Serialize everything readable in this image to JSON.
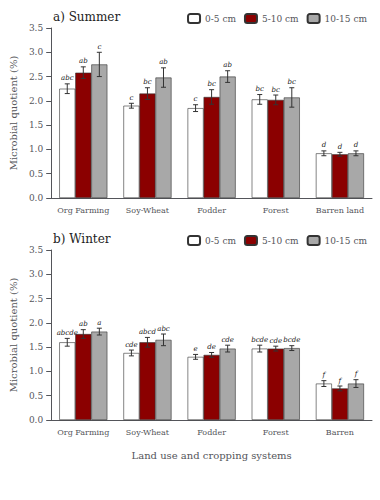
{
  "chart_data": [
    {
      "type": "bar",
      "title": "a) Summer",
      "categories": [
        "Org Farming",
        "Soy-Wheat",
        "Fodder",
        "Forest",
        "Barren land"
      ],
      "series": [
        {
          "name": "0-5 cm",
          "color": "#ffffff",
          "values": [
            2.25,
            1.9,
            1.85,
            2.03,
            0.92
          ],
          "errors": [
            0.1,
            0.05,
            0.07,
            0.1,
            0.05
          ],
          "letters": [
            "abc",
            "c",
            "c",
            "bc",
            "d"
          ]
        },
        {
          "name": "5-10 cm",
          "color": "#8b0000",
          "values": [
            2.58,
            2.15,
            2.08,
            2.02,
            0.9
          ],
          "errors": [
            0.12,
            0.12,
            0.15,
            0.1,
            0.04
          ],
          "letters": [
            "ab",
            "bc",
            "bc",
            "bc",
            "d"
          ]
        },
        {
          "name": "10-15 cm",
          "color": "#a8a8a8",
          "values": [
            2.75,
            2.48,
            2.5,
            2.07,
            0.92
          ],
          "errors": [
            0.25,
            0.2,
            0.12,
            0.2,
            0.05
          ],
          "letters": [
            "c",
            "ab",
            "ab",
            "bc",
            "d"
          ]
        }
      ],
      "ylabel": "Microbial quotient (%)",
      "ylim": [
        0,
        3.5
      ],
      "yticks": [
        {
          "value": 0.0,
          "label": "0.0"
        },
        0.5,
        {
          "value": 1.0,
          "label": "1.0"
        },
        1.5,
        {
          "value": 2.0,
          "label": "2.0"
        },
        2.5,
        {
          "value": 3.0,
          "label": "3.0"
        },
        3.5
      ],
      "grid": false,
      "legend": "upper right"
    },
    {
      "type": "bar",
      "title": "b) Winter",
      "categories": [
        "Org Farming",
        "Soy-Wheat",
        "Fodder",
        "Forest",
        "Barren"
      ],
      "series": [
        {
          "name": "0-5 cm",
          "color": "#ffffff",
          "values": [
            1.6,
            1.38,
            1.3,
            1.47,
            0.75
          ],
          "errors": [
            0.08,
            0.06,
            0.05,
            0.07,
            0.06
          ],
          "letters": [
            "abcde",
            "cde",
            "e",
            "bcde",
            "f"
          ]
        },
        {
          "name": "5-10 cm",
          "color": "#8b0000",
          "values": [
            1.77,
            1.6,
            1.34,
            1.47,
            0.65
          ],
          "errors": [
            0.09,
            0.1,
            0.05,
            0.05,
            0.05
          ],
          "letters": [
            "ab",
            "abcd",
            "de",
            "cde",
            "f"
          ]
        },
        {
          "name": "10-15 cm",
          "color": "#a8a8a8",
          "values": [
            1.82,
            1.65,
            1.47,
            1.48,
            0.75
          ],
          "errors": [
            0.07,
            0.12,
            0.07,
            0.05,
            0.08
          ],
          "letters": [
            "a",
            "abc",
            "cde",
            "bcde",
            "f"
          ]
        }
      ],
      "ylabel": "Microbial quotient (%)",
      "xlabel": "Land use and cropping systems",
      "ylim": [
        0,
        3.5
      ],
      "yticks": [
        {
          "value": 0.0,
          "label": "0.0"
        },
        0.5,
        {
          "value": 1.0,
          "label": "1.0"
        },
        1.5,
        {
          "value": 2.0,
          "label": "2.0"
        },
        2.5,
        {
          "value": 3.0,
          "label": "3.0"
        },
        3.5
      ],
      "grid": false,
      "legend": "upper right"
    }
  ]
}
